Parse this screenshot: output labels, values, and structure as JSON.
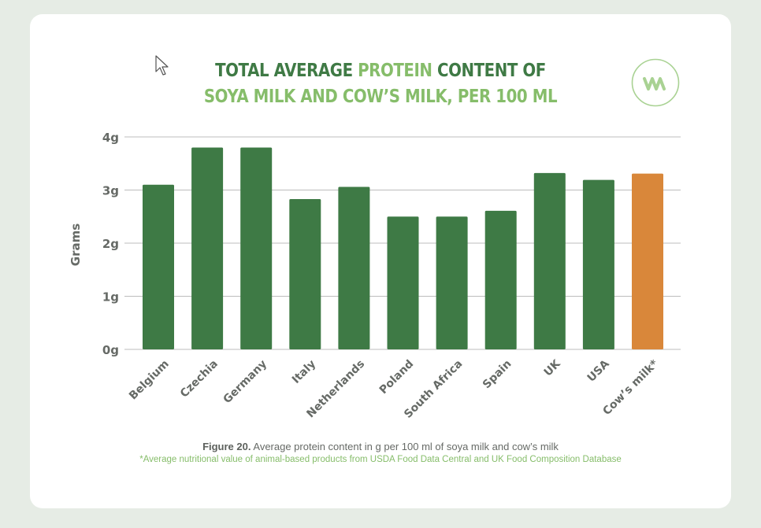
{
  "title": {
    "line1_dark_a": "TOTAL AVERAGE ",
    "line1_light": "PROTEIN",
    "line1_dark_b": " CONTENT OF",
    "line2_light": "SOYA MILK AND COW’S MILK, PER 100 ML"
  },
  "logo": {
    "icon": "vivera-style leaf logo",
    "color": "#a9d293"
  },
  "caption": {
    "figure_label": "Figure 20.",
    "text": " Average protein content in g per 100 ml of soya milk and cow’s milk",
    "footnote": "*Average nutritional value of animal-based products from USDA Food Data Central and UK Food Composition Database"
  },
  "colors": {
    "soya_bar": "#3e7a45",
    "cow_bar": "#d9873a",
    "grid": "#bcbcbc",
    "axis_text": "#666a66"
  },
  "chart_data": {
    "type": "bar",
    "title": "TOTAL AVERAGE PROTEIN CONTENT OF SOYA MILK AND COW’S MILK, PER 100 ML",
    "xlabel": "",
    "ylabel": "Grams",
    "categories": [
      "Belgium",
      "Czechia",
      "Germany",
      "Italy",
      "Netherlands",
      "Poland",
      "South Africa",
      "Spain",
      "UK",
      "USA",
      "Cow’s milk*"
    ],
    "values": [
      3.1,
      3.8,
      3.8,
      2.83,
      3.06,
      2.5,
      2.5,
      2.61,
      3.32,
      3.19,
      3.31
    ],
    "highlight_index": 10,
    "ylim": [
      0,
      4
    ],
    "yticks": [
      0,
      1,
      2,
      3,
      4
    ],
    "ytick_labels": [
      "0g",
      "1g",
      "2g",
      "3g",
      "4g"
    ],
    "grid": true,
    "legend": "none"
  }
}
